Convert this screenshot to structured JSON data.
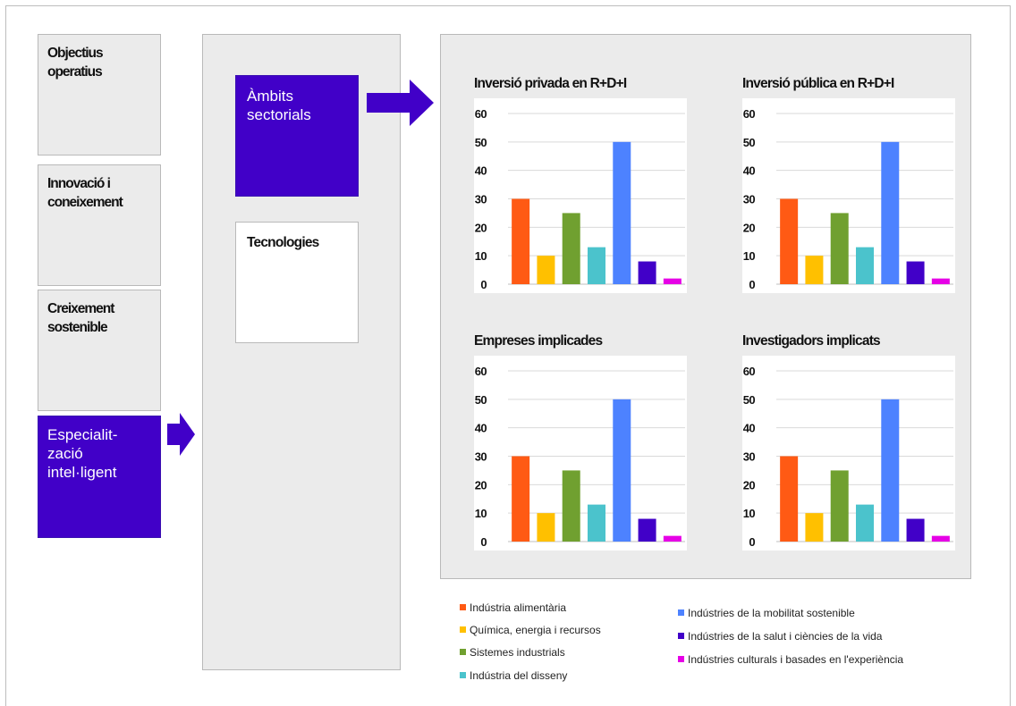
{
  "left_boxes": [
    {
      "label": "Objectius\noperatius",
      "active": false
    },
    {
      "label": "Innovació i\nconeixement",
      "active": false
    },
    {
      "label": "Creixement\nsostenible",
      "active": false
    },
    {
      "label": "Especialit-\nzació\nintel·ligent",
      "active": true
    }
  ],
  "middle_boxes": {
    "ambits": "Àmbits\nsectorials",
    "tecnologies": "Tecnologies"
  },
  "colors": {
    "accent_purple": "#4100c8",
    "panel_gray": "#ebebeb"
  },
  "chart_data": [
    {
      "type": "bar",
      "title": "Inversió privada en R+D+I",
      "categories": [
        "Indústria alimentària",
        "Química, energia i recursos",
        "Sistemes industrials",
        "Indústria del disseny",
        "Indústries de la mobilitat sostenible",
        "Indústries de la salut i ciències de la vida",
        "Indústries culturals i basades en l'experiència"
      ],
      "values": [
        30,
        10,
        25,
        13,
        50,
        8,
        2
      ],
      "yticks": [
        "0",
        "10",
        "20",
        "30",
        "40",
        "50",
        "60"
      ],
      "ylim": [
        0,
        60
      ],
      "grid": true
    },
    {
      "type": "bar",
      "title": "Inversió pública en R+D+I",
      "categories": [
        "Indústria alimentària",
        "Química, energia i recursos",
        "Sistemes industrials",
        "Indústria del disseny",
        "Indústries de la mobilitat sostenible",
        "Indústries de la salut i ciències de la vida",
        "Indústries culturals i basades en l'experiència"
      ],
      "values": [
        30,
        10,
        25,
        13,
        50,
        8,
        2
      ],
      "yticks": [
        "0",
        "10",
        "20",
        "30",
        "40",
        "50",
        "60"
      ],
      "ylim": [
        0,
        60
      ],
      "grid": true
    },
    {
      "type": "bar",
      "title": "Empreses implicades",
      "categories": [
        "Indústria alimentària",
        "Química, energia i recursos",
        "Sistemes industrials",
        "Indústria del disseny",
        "Indústries de la mobilitat sostenible",
        "Indústries de la salut i ciències de la vida",
        "Indústries culturals i basades en l'experiència"
      ],
      "values": [
        30,
        10,
        25,
        13,
        50,
        8,
        2
      ],
      "yticks": [
        "0",
        "10",
        "20",
        "30",
        "40",
        "50",
        "60"
      ],
      "ylim": [
        0,
        60
      ],
      "grid": true
    },
    {
      "type": "bar",
      "title": "Investigadors implicats",
      "categories": [
        "Indústria alimentària",
        "Química, energia i recursos",
        "Sistemes industrials",
        "Indústria del disseny",
        "Indústries de la mobilitat sostenible",
        "Indústries de la salut i ciències de la vida",
        "Indústries culturals i basades en l'experiència"
      ],
      "values": [
        30,
        10,
        25,
        13,
        50,
        8,
        2
      ],
      "yticks": [
        "0",
        "10",
        "20",
        "30",
        "40",
        "50",
        "60"
      ],
      "ylim": [
        0,
        60
      ],
      "grid": true
    }
  ],
  "legend": {
    "placement": "bottom",
    "items": [
      {
        "label": "Indústria alimentària",
        "color": "#ff5a14"
      },
      {
        "label": "Química, energia i recursos",
        "color": "#ffc000"
      },
      {
        "label": "Sistemes industrials",
        "color": "#70a030"
      },
      {
        "label": "Indústria del disseny",
        "color": "#4bc3cc"
      },
      {
        "label": "Indústries de la mobilitat sostenible",
        "color": "#4d82ff"
      },
      {
        "label": "Indústries de la salut i ciències de la vida",
        "color": "#4100c8"
      },
      {
        "label": "Indústries culturals i basades en l'experiència",
        "color": "#e600e6"
      }
    ]
  }
}
